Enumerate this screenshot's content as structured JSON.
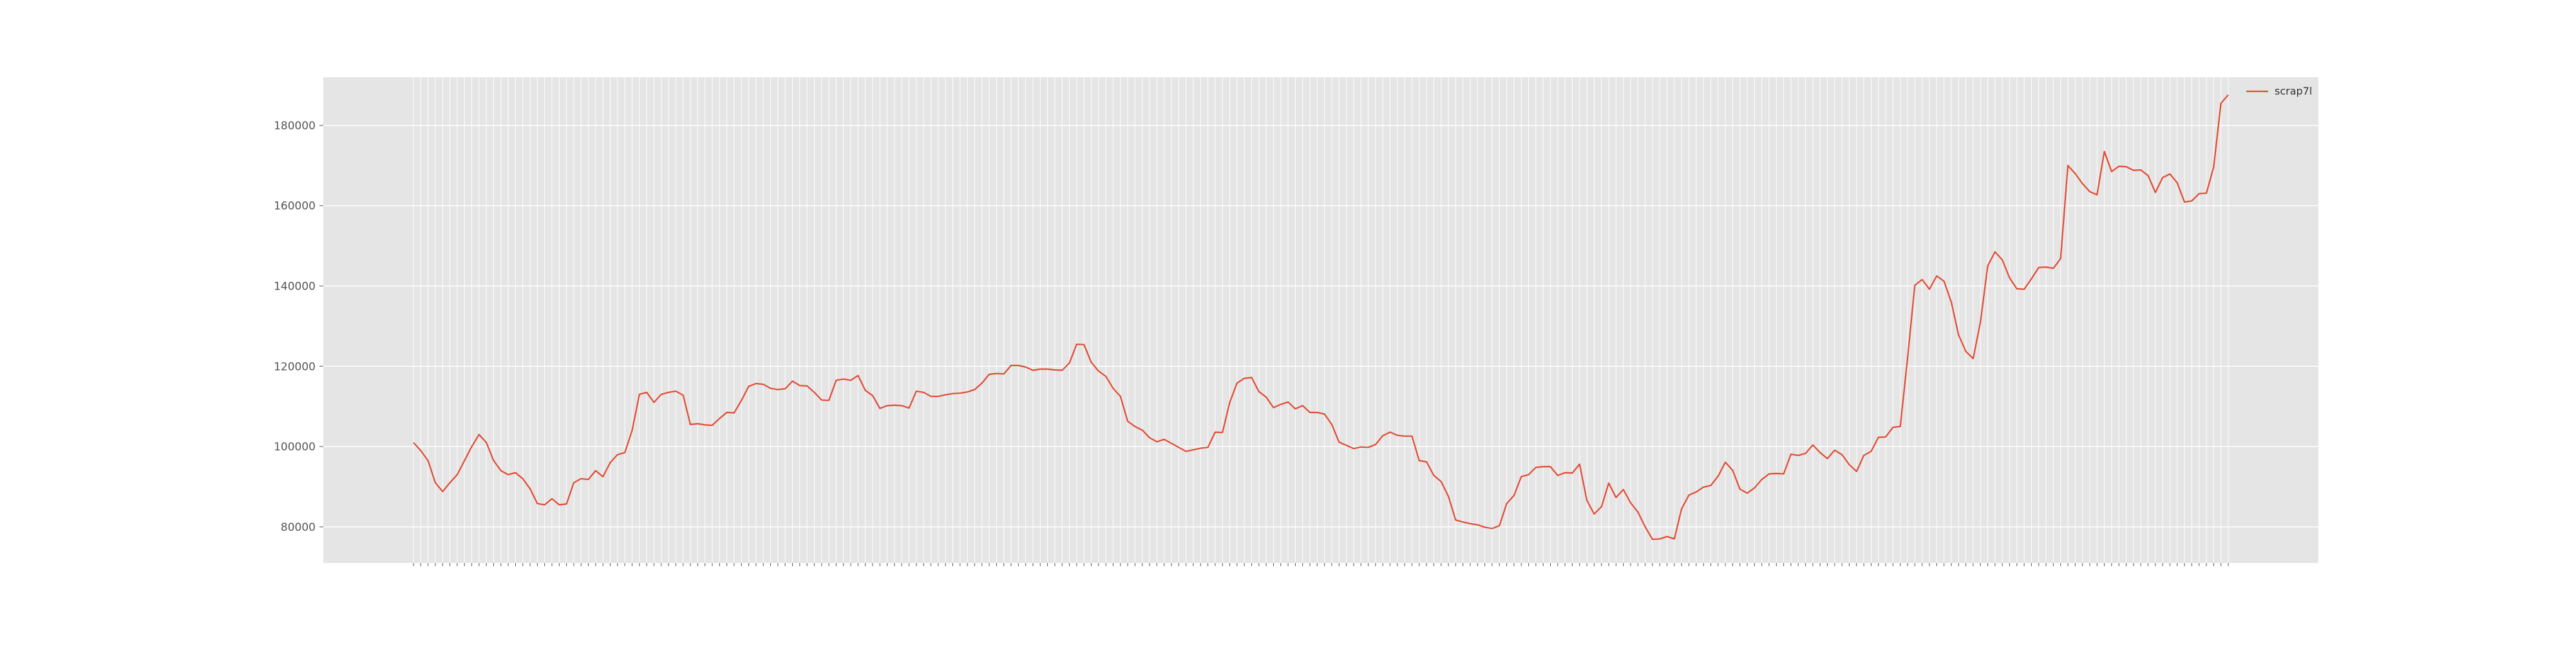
{
  "chart_data": {
    "type": "line",
    "title": "",
    "xlabel": "",
    "ylabel": "",
    "ylim": [
      71000,
      192000
    ],
    "yticks": [
      80000,
      100000,
      120000,
      140000,
      160000,
      180000
    ],
    "grid": true,
    "legend_position": "top-right",
    "colors": {
      "plot_bg": "#e5e5e5",
      "grid": "#ffffff",
      "series": "#e24a33",
      "tick_text": "#555555"
    },
    "series": [
      {
        "name": "scrap7l",
        "color": "#e24a33",
        "values": [
          101000,
          99000,
          96500,
          91000,
          88800,
          91000,
          93000,
          96500,
          100000,
          103000,
          101000,
          96500,
          94000,
          93000,
          93500,
          92000,
          89500,
          85800,
          85500,
          87000,
          85500,
          85700,
          91000,
          92000,
          91800,
          94000,
          92500,
          96000,
          98000,
          98500,
          104000,
          113000,
          113500,
          111000,
          113000,
          113500,
          113800,
          112800,
          105500,
          105700,
          105400,
          105300,
          107000,
          108500,
          108400,
          111500,
          115000,
          115700,
          115500,
          114500,
          114200,
          114400,
          116300,
          115200,
          115100,
          113500,
          111600,
          111500,
          116500,
          116800,
          116500,
          117700,
          114000,
          112700,
          109500,
          110200,
          110300,
          110200,
          109600,
          113800,
          113500,
          112500,
          112500,
          112900,
          113200,
          113300,
          113600,
          114200,
          115800,
          118000,
          118200,
          118100,
          120200,
          120200,
          119800,
          119000,
          119300,
          119300,
          119100,
          119000,
          120800,
          125500,
          125400,
          121000,
          118800,
          117500,
          114500,
          112500,
          106300,
          105000,
          104100,
          102200,
          101200,
          101800,
          100800,
          99800,
          98800,
          99200,
          99600,
          99800,
          103600,
          103500,
          111000,
          115800,
          117000,
          117200,
          113700,
          112300,
          109700,
          110500,
          111100,
          109400,
          110200,
          108500,
          108500,
          108100,
          105500,
          101100,
          100300,
          99500,
          99900,
          99800,
          100500,
          102700,
          103600,
          102800,
          102600,
          102600,
          96500,
          96200,
          92800,
          91300,
          87600,
          81700,
          81200,
          80800,
          80500,
          79900,
          79600,
          80300,
          85800,
          87800,
          92500,
          93000,
          94800,
          95000,
          95000,
          92800,
          93500,
          93400,
          95600,
          86600,
          83200,
          85000,
          90900,
          87300,
          89300,
          86000,
          83700,
          80000,
          76900,
          77000,
          77600,
          77000,
          84500,
          87900,
          88700,
          89900,
          90300,
          92600,
          96100,
          94100,
          89400,
          88400,
          89700,
          91800,
          93200,
          93300,
          93200,
          98100,
          97800,
          98300,
          100400,
          98500,
          97000,
          99100,
          98000,
          95500,
          93800,
          97800,
          98800,
          102300,
          102400,
          104800,
          105000,
          122000,
          140200,
          141600,
          139200,
          142500,
          141200,
          136000,
          127800,
          123700,
          121900,
          131000,
          145000,
          148500,
          146500,
          142000,
          139300,
          139200,
          141800,
          144600,
          144700,
          144400,
          146800,
          170000,
          168000,
          165500,
          163500,
          162700,
          173500,
          168500,
          169800,
          169700,
          168800,
          168900,
          167500,
          163300,
          167000,
          167900,
          165700,
          160900,
          161200,
          163000,
          163100,
          169600,
          185500,
          187600
        ]
      }
    ]
  }
}
